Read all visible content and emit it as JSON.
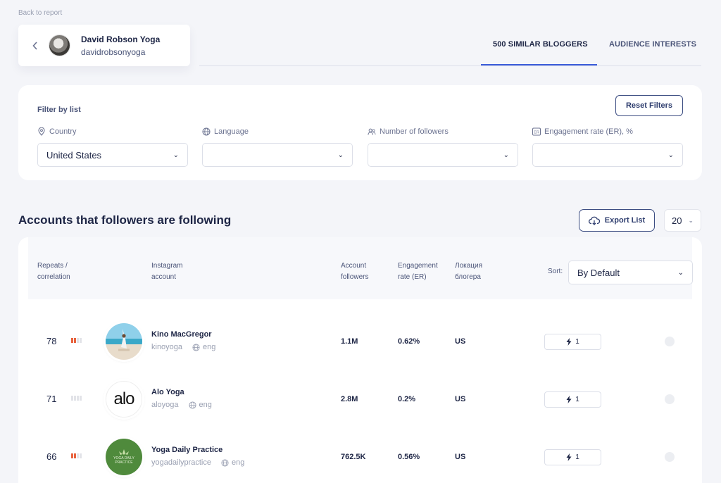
{
  "nav": {
    "back_label": "Back to report"
  },
  "profile": {
    "name": "David Robson Yoga",
    "handle": "davidrobsonyoga"
  },
  "tabs": [
    {
      "label": "500 SIMILAR BLOGGERS",
      "active": true
    },
    {
      "label": "AUDIENCE INTERESTS",
      "active": false
    }
  ],
  "filters": {
    "title": "Filter by list",
    "reset_label": "Reset Filters",
    "items": [
      {
        "label": "Country",
        "icon": "location-pin-icon",
        "value": "United States"
      },
      {
        "label": "Language",
        "icon": "globe-icon",
        "value": ""
      },
      {
        "label": "Number of followers",
        "icon": "users-icon",
        "value": ""
      },
      {
        "label": "Engagement rate (ER), %",
        "icon": "er-badge-icon",
        "value": ""
      }
    ]
  },
  "section": {
    "title": "Accounts that followers are following",
    "export_label": "Export List",
    "per_page": "20"
  },
  "table": {
    "headers": {
      "repeats": [
        "Repeats /",
        "correlation"
      ],
      "account": [
        "Instagram",
        "account"
      ],
      "followers": [
        "Account",
        "followers"
      ],
      "er": [
        "Engagement",
        "rate (ER)"
      ],
      "location": [
        "Локация",
        "блогера"
      ]
    },
    "sort_label": "Sort:",
    "sort_value": "By Default",
    "rows": [
      {
        "repeats": "78",
        "correlation_level": 2,
        "name": "Kino MacGregor",
        "handle": "kinoyoga",
        "lang": "eng",
        "followers": "1.1M",
        "er": "0.62%",
        "location": "US",
        "metric": "1"
      },
      {
        "repeats": "71",
        "correlation_level": 0,
        "name": "Alo Yoga",
        "handle": "aloyoga",
        "lang": "eng",
        "followers": "2.8M",
        "er": "0.2%",
        "location": "US",
        "metric": "1"
      },
      {
        "repeats": "66",
        "correlation_level": 2,
        "name": "Yoga Daily Practice",
        "handle": "yogadailypractice",
        "lang": "eng",
        "followers": "762.5K",
        "er": "0.56%",
        "location": "US",
        "metric": "1"
      }
    ],
    "avatar_texts": {
      "alo": "alo",
      "ydp": "YOGA DAILY PRACTICE"
    }
  },
  "colors": {
    "accent": "#3a5bd9",
    "correlation_bar": "#e8623d",
    "text_dark": "#1d2545"
  }
}
